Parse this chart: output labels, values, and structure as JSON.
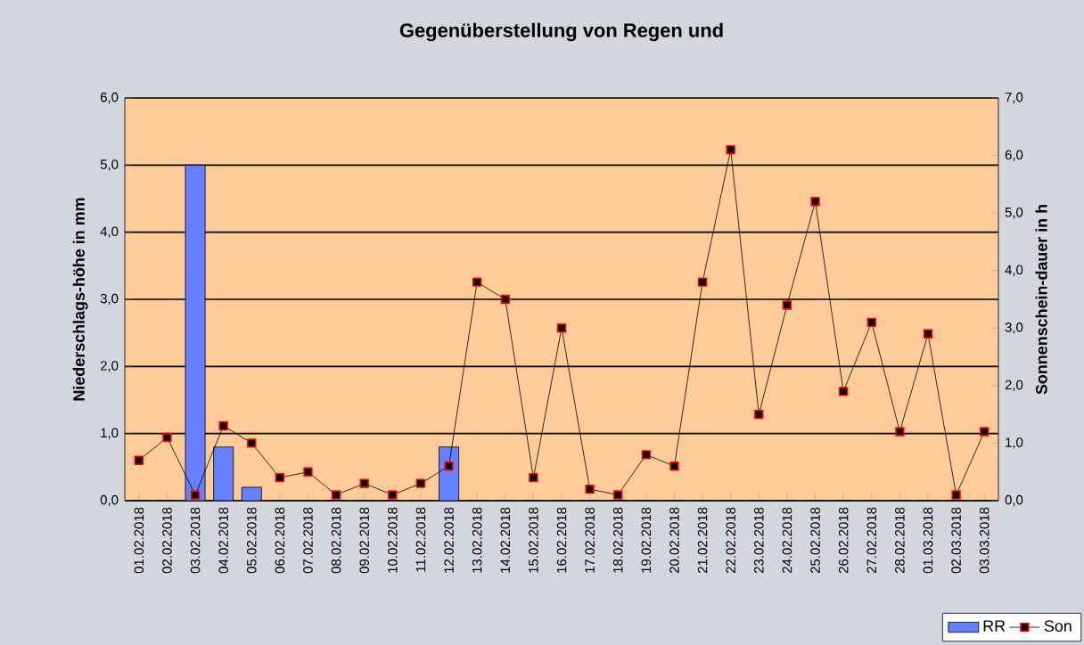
{
  "chart_data": {
    "type": "bar",
    "title": "Gegenüberstellung von Regen und",
    "ylabel": "Niederschlags-höhe in mm",
    "y2label": "Sonnenschein-dauer in h",
    "categories": [
      "01.02.2018",
      "02.02.2018",
      "03.02.2018",
      "04.02.2018",
      "05.02.2018",
      "06.02.2018",
      "07.02.2018",
      "08.02.2018",
      "09.02.2018",
      "10.02.2018",
      "11.02.2018",
      "12.02.2018",
      "13.02.2018",
      "14.02.2018",
      "15.02.2018",
      "16.02.2018",
      "17.02.2018",
      "18.02.2018",
      "19.02.2018",
      "20.02.2018",
      "21.02.2018",
      "22.02.2018",
      "23.02.2018",
      "24.02.2018",
      "25.02.2018",
      "26.02.2018",
      "27.02.2018",
      "28.02.2018",
      "01.03.2018",
      "02.03.2018",
      "03.03.2018"
    ],
    "series": [
      {
        "name": "RR",
        "axis": "y",
        "color": "#6680ff",
        "values": [
          0,
          0,
          5.0,
          0.8,
          0.2,
          0,
          0,
          0,
          0,
          0,
          0,
          0.8,
          0,
          0,
          0,
          0,
          0,
          0,
          0,
          0,
          0,
          0,
          0,
          0,
          0,
          0,
          0,
          0,
          0,
          0,
          0
        ]
      },
      {
        "name": "Son",
        "type": "line",
        "axis": "y2",
        "color": "#ff0000",
        "values": [
          0.7,
          1.1,
          0.1,
          1.3,
          1.0,
          0.4,
          0.5,
          0.1,
          0.3,
          0.1,
          0.3,
          0.6,
          3.8,
          3.5,
          0.4,
          3.0,
          0.2,
          0.1,
          0.8,
          0.6,
          3.8,
          6.1,
          1.5,
          3.4,
          5.2,
          1.9,
          3.1,
          1.2,
          2.9,
          0.1,
          1.2
        ]
      }
    ],
    "ylim": [
      0,
      6
    ],
    "yticks": [
      {
        "value": 0,
        "label": "0,0"
      },
      {
        "value": 1,
        "label": "1,0"
      },
      {
        "value": 2,
        "label": "2,0"
      },
      {
        "value": 3,
        "label": "3,0"
      },
      {
        "value": 4,
        "label": "4,0"
      },
      {
        "value": 5,
        "label": "5,0"
      },
      {
        "value": 6,
        "label": "6,0"
      }
    ],
    "y2lim": [
      0,
      7
    ],
    "y2ticks": [
      {
        "value": 0,
        "label": "0,0"
      },
      {
        "value": 1,
        "label": "1,0"
      },
      {
        "value": 2,
        "label": "2,0"
      },
      {
        "value": 3,
        "label": "3,0"
      },
      {
        "value": 4,
        "label": "4,0"
      },
      {
        "value": 5,
        "label": "5,0"
      },
      {
        "value": 6,
        "label": "6,0"
      },
      {
        "value": 7,
        "label": "7,0"
      }
    ],
    "grid": "y",
    "legend": "bottom right",
    "marker": "square"
  }
}
